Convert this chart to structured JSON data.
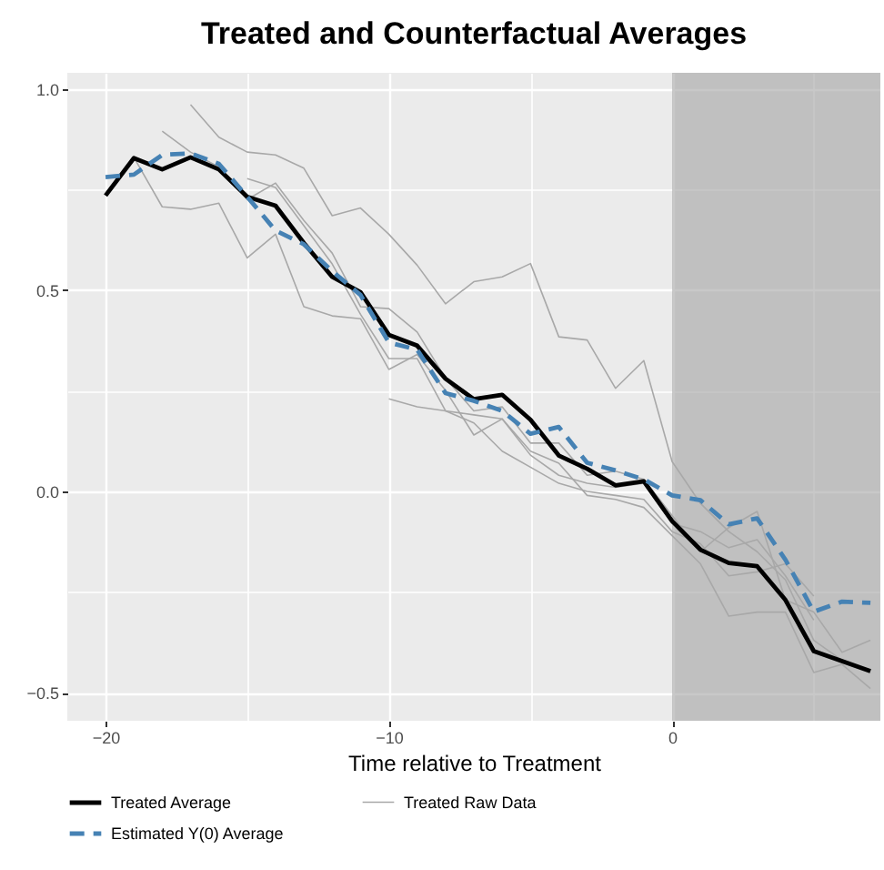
{
  "chart_data": {
    "type": "line",
    "title": "Treated and Counterfactual Averages",
    "xlabel": "Time relative to Treatment",
    "xlim": [
      -21.35,
      7.35
    ],
    "ylim": [
      -0.57,
      1.04
    ],
    "xticks": [
      {
        "value": -20,
        "label": "−20"
      },
      {
        "value": -15,
        "label": null
      },
      {
        "value": -10,
        "label": "−10"
      },
      {
        "value": -5,
        "label": null
      },
      0,
      {
        "value": 5,
        "label": null
      }
    ],
    "yticks": [
      {
        "value": -0.5,
        "label": "−0.5"
      },
      {
        "value": -0.25,
        "label": null
      },
      {
        "value": 0,
        "label": "0.0"
      },
      {
        "value": 0.25,
        "label": null
      },
      {
        "value": 0.5,
        "label": "0.5"
      },
      {
        "value": 0.75,
        "label": null
      },
      {
        "value": 1,
        "label": "1.0"
      }
    ],
    "grid": true,
    "legend": "bottom",
    "bands": [
      {
        "axis": "x",
        "from": 0,
        "to": 7.35,
        "color": "#a3a3a3"
      }
    ],
    "series": [
      {
        "name": "Treated Average",
        "color": "#000000",
        "line_style": "solid",
        "x": [
          -20,
          -19,
          -18,
          -17,
          -16,
          -15,
          -14,
          -13,
          -12,
          -11,
          -10,
          -9,
          -8,
          -7,
          -6,
          -5,
          -4,
          -3,
          -2,
          -1,
          0,
          1,
          2,
          3,
          4,
          5,
          6,
          7
        ],
        "values": [
          0.735,
          0.828,
          0.8,
          0.83,
          0.8,
          0.732,
          0.71,
          0.617,
          0.533,
          0.495,
          0.389,
          0.362,
          0.28,
          0.229,
          0.24,
          0.178,
          0.089,
          0.056,
          0.015,
          0.025,
          -0.074,
          -0.145,
          -0.178,
          -0.186,
          -0.27,
          -0.397,
          -0.422,
          -0.447
        ]
      },
      {
        "name": "Treated Raw Data",
        "color": "#a8a8a8",
        "line_style": "solid",
        "x": [
          -17,
          -16,
          -15,
          -14,
          -13,
          -12,
          -11,
          -10,
          -9,
          -8,
          -7,
          -6,
          -5,
          -4,
          -3,
          -2,
          -1,
          0,
          1,
          2,
          3,
          4,
          5,
          6
        ],
        "values": [
          0.961,
          0.88,
          0.843,
          0.836,
          0.803,
          0.685,
          0.704,
          0.639,
          0.562,
          0.466,
          0.521,
          0.533,
          0.566,
          0.384,
          0.376,
          0.256,
          0.325,
          0.074,
          -0.03,
          -0.1,
          -0.15,
          -0.22,
          -0.37,
          -0.42
        ]
      },
      {
        "name": "Estimated Y(0) Average",
        "color": "#4682b4",
        "line_style": "dashed",
        "x": [
          -20,
          -19,
          -18,
          -17,
          -16,
          -15,
          -14,
          -13,
          -12,
          -11,
          -10,
          -9,
          -8,
          -7,
          -6,
          -5,
          -4,
          -3,
          -2,
          -1,
          0,
          1,
          2,
          3,
          4,
          5,
          6,
          7
        ],
        "values": [
          0.781,
          0.787,
          0.836,
          0.84,
          0.814,
          0.732,
          0.648,
          0.614,
          0.547,
          0.488,
          0.37,
          0.352,
          0.244,
          0.225,
          0.2,
          0.143,
          0.16,
          0.071,
          0.052,
          0.03,
          -0.01,
          -0.022,
          -0.082,
          -0.067,
          -0.17,
          -0.299,
          -0.274,
          -0.277
        ]
      },
      {
        "color": "#a8a8a8",
        "line_style": "solid",
        "x": [
          -18,
          -17,
          -16,
          -15,
          -14,
          -13,
          -12,
          -11,
          -10,
          -9,
          -8,
          -7,
          -6,
          -5,
          -4,
          -3,
          -2,
          -1,
          0,
          1,
          2,
          3,
          4,
          5,
          6,
          7
        ],
        "values": [
          0.895,
          0.843,
          0.806,
          0.725,
          0.766,
          0.673,
          0.592,
          0.459,
          0.454,
          0.396,
          0.281,
          0.2,
          0.21,
          0.12,
          0.12,
          0.04,
          0.05,
          0.03,
          -0.06,
          -0.15,
          -0.09,
          -0.05,
          -0.27,
          -0.3,
          -0.4,
          -0.37
        ]
      },
      {
        "color": "#a8a8a8",
        "line_style": "solid",
        "x": [
          -19,
          -18,
          -17,
          -16,
          -15,
          -14,
          -13,
          -12,
          -11,
          -10,
          -9,
          -8,
          -7,
          -6,
          -5,
          -4,
          -3,
          -2,
          -1,
          0,
          1,
          2,
          3,
          4,
          5
        ],
        "values": [
          0.83,
          0.707,
          0.701,
          0.716,
          0.58,
          0.639,
          0.459,
          0.436,
          0.429,
          0.303,
          0.34,
          0.251,
          0.14,
          0.18,
          0.09,
          0.04,
          0.02,
          0.01,
          0.02,
          -0.08,
          -0.1,
          -0.14,
          -0.12,
          -0.21,
          -0.32
        ]
      },
      {
        "color": "#a8a8a8",
        "line_style": "solid",
        "x": [
          -15,
          -14,
          -13,
          -12,
          -11,
          -10,
          -9,
          -8,
          -7,
          -6,
          -5,
          -4,
          -3,
          -2,
          -1,
          0,
          1,
          2,
          3,
          4,
          5
        ],
        "values": [
          0.777,
          0.755,
          0.66,
          0.565,
          0.44,
          0.33,
          0.33,
          0.2,
          0.17,
          0.1,
          0.06,
          0.02,
          0.0,
          -0.01,
          -0.02,
          -0.1,
          -0.13,
          -0.21,
          -0.2,
          -0.18,
          -0.26
        ]
      },
      {
        "color": "#a8a8a8",
        "line_style": "solid",
        "x": [
          -10,
          -9,
          -8,
          -7,
          -6,
          -5,
          -4,
          -3,
          -2,
          -1,
          0,
          1,
          2,
          3,
          4,
          5,
          6,
          7
        ],
        "values": [
          0.23,
          0.21,
          0.2,
          0.19,
          0.18,
          0.1,
          0.07,
          -0.01,
          -0.02,
          -0.04,
          -0.11,
          -0.18,
          -0.31,
          -0.3,
          -0.3,
          -0.45,
          -0.43,
          -0.49
        ]
      }
    ]
  }
}
